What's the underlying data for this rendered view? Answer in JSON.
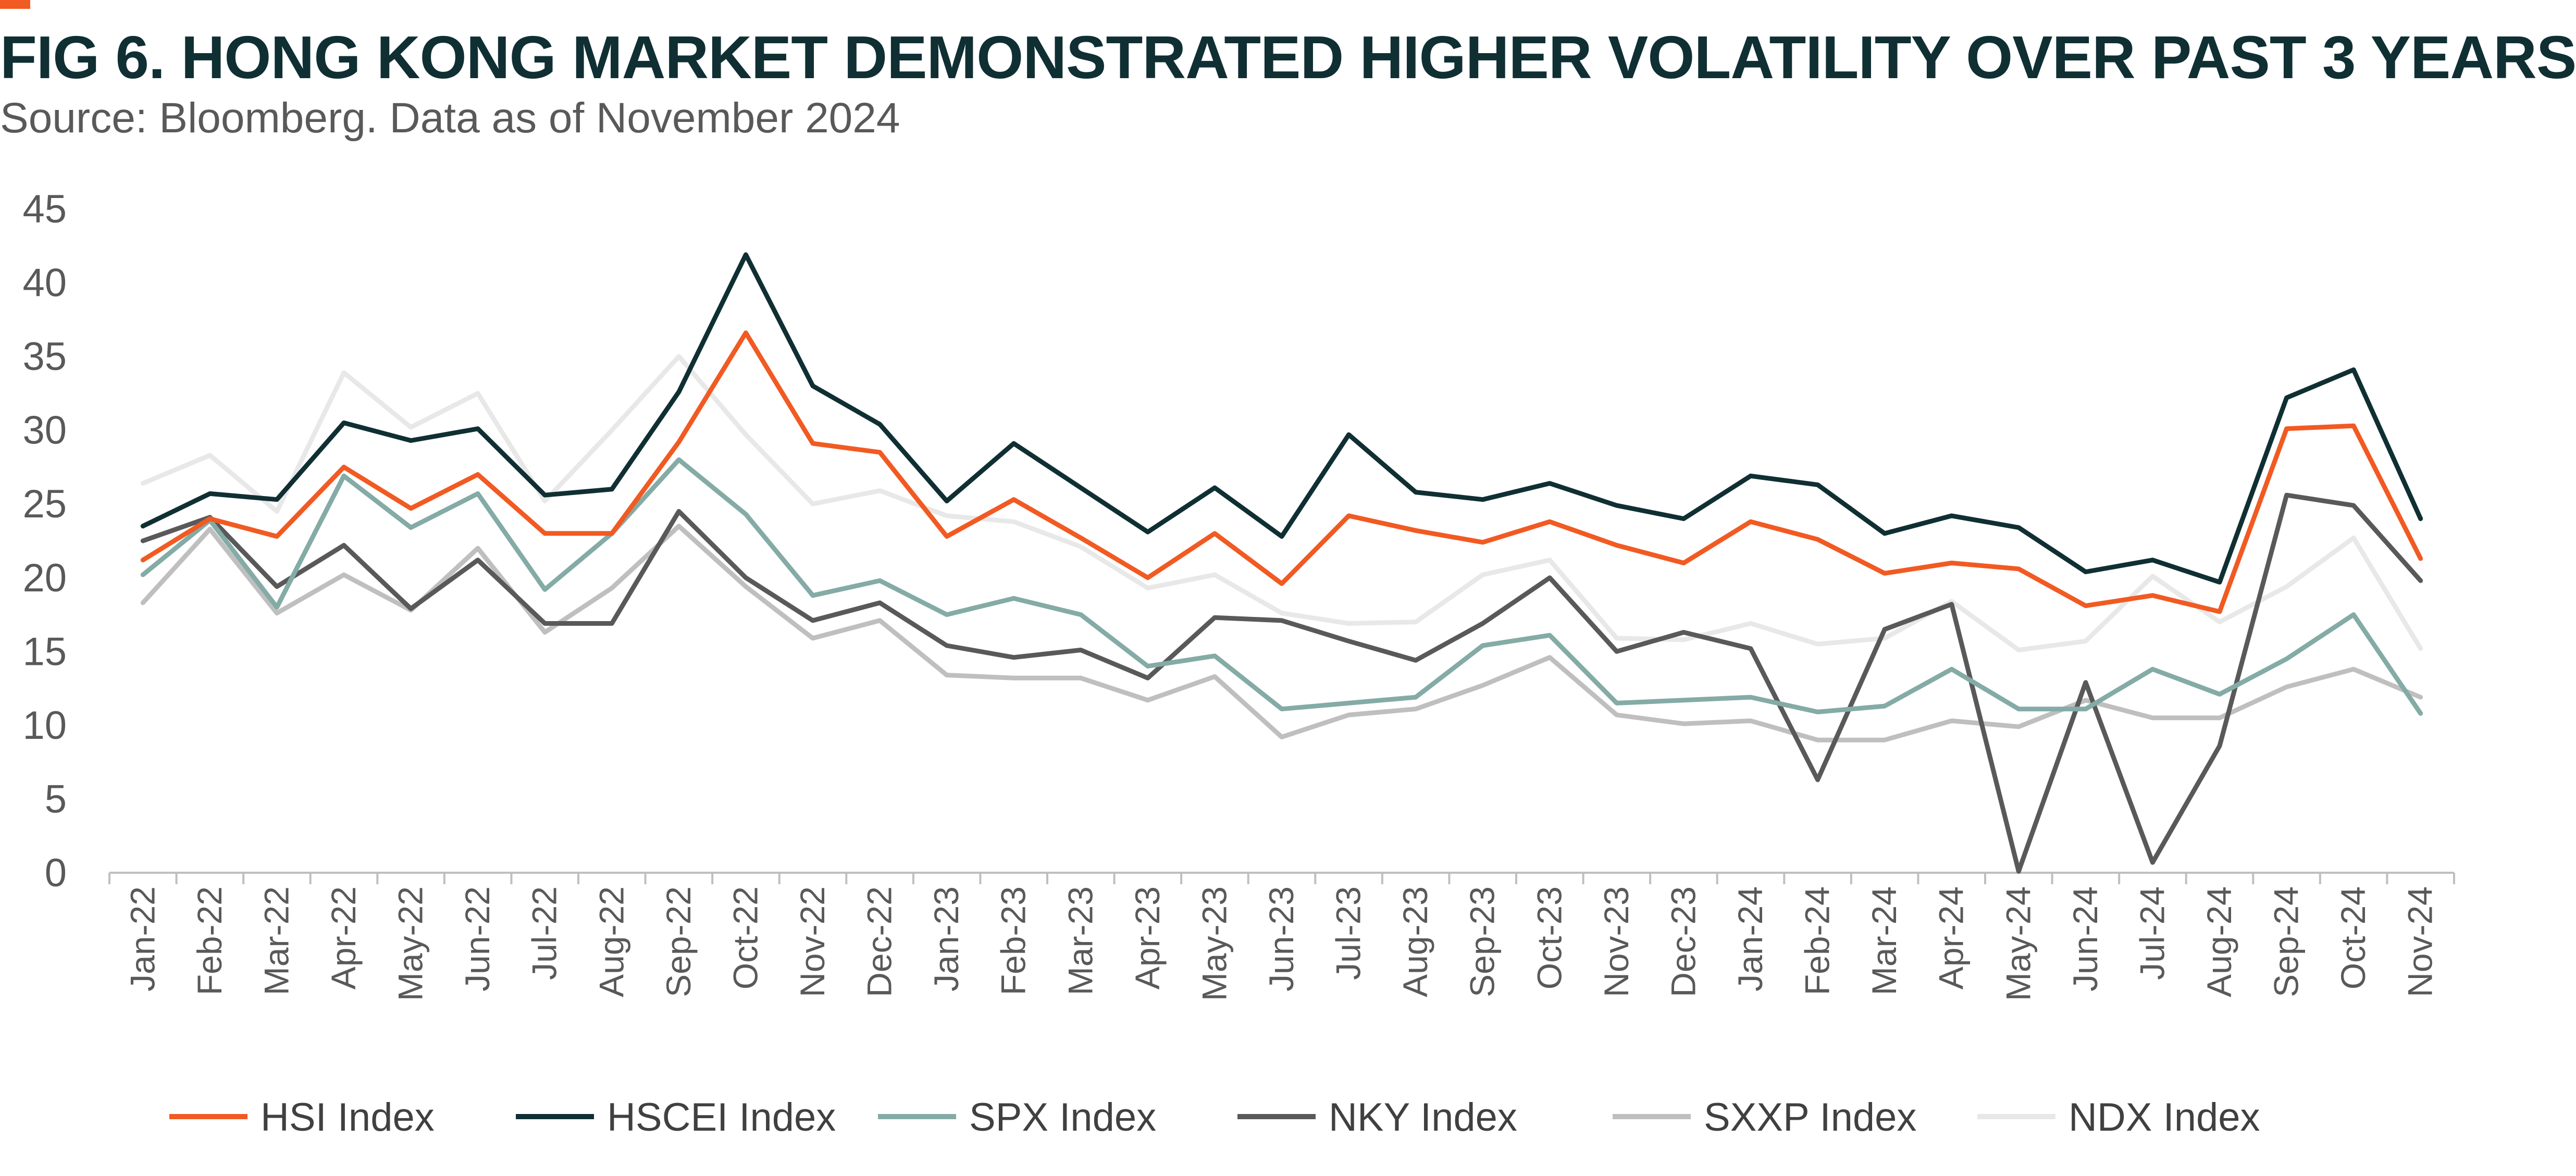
{
  "header": {
    "title": "FIG 6. HONG KONG MARKET DEMONSTRATED HIGHER VOLATILITY OVER PAST 3 YEARS",
    "subtitle": "Source: Bloomberg. Data as of November 2024",
    "accent_color": "#f15a22"
  },
  "chart_data": {
    "type": "line",
    "title": "FIG 6. HONG KONG MARKET DEMONSTRATED HIGHER VOLATILITY OVER PAST 3 YEARS",
    "subtitle": "Source: Bloomberg. Data as of November 2024",
    "xlabel": "",
    "ylabel": "",
    "ylim": [
      0,
      45
    ],
    "yticks": [
      0,
      5,
      10,
      15,
      20,
      25,
      30,
      35,
      40,
      45
    ],
    "grid": false,
    "legend_position": "bottom",
    "categories": [
      "Jan-22",
      "Feb-22",
      "Mar-22",
      "Apr-22",
      "May-22",
      "Jun-22",
      "Jul-22",
      "Aug-22",
      "Sep-22",
      "Oct-22",
      "Nov-22",
      "Dec-22",
      "Jan-23",
      "Feb-23",
      "Mar-23",
      "Apr-23",
      "May-23",
      "Jun-23",
      "Jul-23",
      "Aug-23",
      "Sep-23",
      "Oct-23",
      "Nov-23",
      "Dec-23",
      "Jan-24",
      "Feb-24",
      "Mar-24",
      "Apr-24",
      "May-24",
      "Jun-24",
      "Jul-24",
      "Aug-24",
      "Sep-24",
      "Oct-24",
      "Nov-24"
    ],
    "series": [
      {
        "name": "NDX Index",
        "color": "#e8e8e8",
        "values": [
          26.4,
          28.3,
          24.5,
          33.9,
          30.2,
          32.5,
          25.2,
          30.0,
          35.0,
          29.7,
          25.0,
          25.9,
          24.2,
          23.8,
          22.1,
          19.3,
          20.2,
          17.6,
          16.9,
          17.0,
          20.2,
          21.2,
          15.9,
          15.8,
          16.9,
          15.5,
          15.9,
          18.4,
          15.1,
          15.7,
          20.1,
          17.0,
          19.4,
          22.7,
          15.2
        ]
      },
      {
        "name": "SXXP Index",
        "color": "#bfbfbf",
        "values": [
          18.3,
          23.3,
          17.6,
          20.2,
          17.8,
          22.0,
          16.3,
          19.3,
          23.5,
          19.4,
          15.9,
          17.1,
          13.4,
          13.2,
          13.2,
          11.7,
          13.3,
          9.2,
          10.7,
          11.1,
          12.7,
          14.6,
          10.7,
          10.1,
          10.3,
          9.0,
          9.0,
          10.3,
          9.9,
          11.7,
          10.5,
          10.5,
          12.6,
          13.8,
          11.9
        ]
      },
      {
        "name": "NKY Index",
        "color": "#595959",
        "values": [
          22.5,
          24.1,
          19.4,
          22.2,
          17.9,
          21.2,
          16.9,
          16.9,
          24.5,
          20.0,
          17.1,
          18.3,
          15.4,
          14.6,
          15.1,
          13.2,
          17.3,
          17.1,
          15.7,
          14.4,
          16.9,
          20.0,
          15.0,
          16.3,
          15.2,
          6.3,
          16.5,
          18.2,
          0.1,
          12.9,
          0.7,
          8.6,
          25.6,
          24.9,
          19.8
        ]
      },
      {
        "name": "SPX Index",
        "color": "#84aba6",
        "values": [
          20.2,
          23.9,
          18.0,
          26.9,
          23.4,
          25.7,
          19.2,
          23.0,
          28.0,
          24.3,
          18.8,
          19.8,
          17.5,
          18.6,
          17.5,
          14.0,
          14.7,
          11.1,
          11.5,
          11.9,
          15.4,
          16.1,
          11.5,
          11.7,
          11.9,
          10.9,
          11.3,
          13.8,
          11.1,
          11.1,
          13.8,
          12.1,
          14.5,
          17.5,
          10.8
        ]
      },
      {
        "name": "HSI Index",
        "color": "#f15a22",
        "values": [
          21.2,
          24.0,
          22.8,
          27.5,
          24.7,
          27.0,
          23.0,
          23.0,
          29.2,
          36.6,
          29.1,
          28.5,
          22.8,
          25.3,
          22.7,
          20.0,
          23.0,
          19.6,
          24.2,
          23.2,
          22.4,
          23.8,
          22.2,
          21.0,
          23.8,
          22.6,
          20.3,
          21.0,
          20.6,
          18.1,
          18.8,
          17.7,
          30.1,
          30.3,
          21.3
        ]
      },
      {
        "name": "HSCEI Index",
        "color": "#0f2f33",
        "values": [
          23.5,
          25.7,
          25.3,
          30.5,
          29.3,
          30.1,
          25.6,
          26.0,
          32.6,
          41.9,
          33.0,
          30.4,
          25.2,
          29.1,
          26.1,
          23.1,
          26.1,
          22.8,
          29.7,
          25.8,
          25.3,
          26.4,
          24.9,
          24.0,
          26.9,
          26.3,
          23.0,
          24.2,
          23.4,
          20.4,
          21.2,
          19.7,
          32.2,
          34.1,
          24.0
        ]
      }
    ],
    "legend_order": [
      "HSI Index",
      "HSCEI Index",
      "SPX Index",
      "NKY Index",
      "SXXP Index",
      "NDX Index"
    ]
  }
}
